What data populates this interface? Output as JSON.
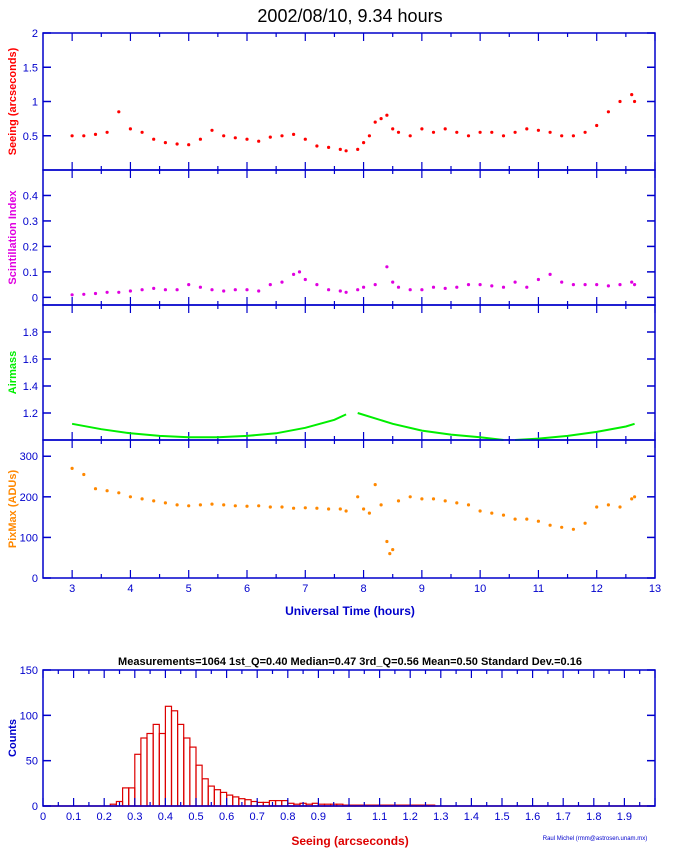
{
  "title": "2002/08/10, 9.34 hours",
  "colors": {
    "axes": "#0000cc",
    "seeing": "#ff0000",
    "scintillation": "#e000e0",
    "airmass": "#00ee00",
    "pixmax": "#ff8800",
    "histogram": "#dd0000",
    "text": "#000000"
  },
  "chart_data": [
    {
      "type": "scatter",
      "name": "seeing-panel",
      "ylabel": "Seeing (arcseconds)",
      "xlim": [
        2.5,
        13
      ],
      "ylim": [
        0,
        2
      ],
      "yticks": [
        "0.5",
        "1",
        "1.5",
        "2"
      ],
      "color_key": "seeing",
      "series": [
        {
          "x": [
            3.0,
            3.2,
            3.4,
            3.6,
            3.8,
            4.0,
            4.2,
            4.4,
            4.6,
            4.8,
            5.0,
            5.2,
            5.4,
            5.6,
            5.8,
            6.0,
            6.2,
            6.4,
            6.6,
            6.8,
            7.0,
            7.2,
            7.4,
            7.6,
            7.7,
            7.9,
            8.0,
            8.1,
            8.2,
            8.3,
            8.4,
            8.5,
            8.6,
            8.8,
            9.0,
            9.2,
            9.4,
            9.6,
            9.8,
            10.0,
            10.2,
            10.4,
            10.6,
            10.8,
            11.0,
            11.2,
            11.4,
            11.6,
            11.8,
            12.0,
            12.2,
            12.4,
            12.6,
            12.65
          ],
          "y": [
            0.5,
            0.5,
            0.52,
            0.55,
            0.85,
            0.6,
            0.55,
            0.45,
            0.4,
            0.38,
            0.37,
            0.45,
            0.58,
            0.5,
            0.47,
            0.45,
            0.42,
            0.48,
            0.5,
            0.52,
            0.45,
            0.35,
            0.33,
            0.3,
            0.28,
            0.3,
            0.4,
            0.5,
            0.7,
            0.75,
            0.8,
            0.6,
            0.55,
            0.5,
            0.6,
            0.55,
            0.6,
            0.55,
            0.5,
            0.55,
            0.55,
            0.5,
            0.55,
            0.6,
            0.58,
            0.55,
            0.5,
            0.5,
            0.55,
            0.65,
            0.85,
            1.0,
            1.1,
            1.0
          ]
        }
      ]
    },
    {
      "type": "scatter",
      "name": "scintillation-panel",
      "ylabel": "Scintillation Index",
      "xlim": [
        2.5,
        13
      ],
      "ylim": [
        -0.03,
        0.5
      ],
      "yticks": [
        "0",
        "0.1",
        "0.2",
        "0.3",
        "0.4"
      ],
      "color_key": "scintillation",
      "series": [
        {
          "x": [
            3.0,
            3.2,
            3.4,
            3.6,
            3.8,
            4.0,
            4.2,
            4.4,
            4.6,
            4.8,
            5.0,
            5.2,
            5.4,
            5.6,
            5.8,
            6.0,
            6.2,
            6.4,
            6.6,
            6.8,
            6.9,
            7.0,
            7.2,
            7.4,
            7.6,
            7.7,
            7.9,
            8.0,
            8.2,
            8.4,
            8.5,
            8.6,
            8.8,
            9.0,
            9.2,
            9.4,
            9.6,
            9.8,
            10.0,
            10.2,
            10.4,
            10.6,
            10.8,
            11.0,
            11.2,
            11.4,
            11.6,
            11.8,
            12.0,
            12.2,
            12.4,
            12.6,
            12.65
          ],
          "y": [
            0.01,
            0.012,
            0.015,
            0.02,
            0.02,
            0.025,
            0.03,
            0.035,
            0.03,
            0.03,
            0.05,
            0.04,
            0.03,
            0.025,
            0.03,
            0.03,
            0.025,
            0.05,
            0.06,
            0.09,
            0.1,
            0.07,
            0.05,
            0.03,
            0.025,
            0.02,
            0.03,
            0.04,
            0.05,
            0.12,
            0.06,
            0.04,
            0.03,
            0.03,
            0.04,
            0.035,
            0.04,
            0.05,
            0.05,
            0.045,
            0.04,
            0.06,
            0.04,
            0.07,
            0.09,
            0.06,
            0.05,
            0.05,
            0.05,
            0.045,
            0.05,
            0.06,
            0.05
          ]
        }
      ]
    },
    {
      "type": "line",
      "name": "airmass-panel",
      "ylabel": "Airmass",
      "xlim": [
        2.5,
        13
      ],
      "ylim": [
        1.0,
        2.0
      ],
      "yticks": [
        "1.2",
        "1.4",
        "1.6",
        "1.8"
      ],
      "color_key": "airmass",
      "series": [
        {
          "x": [
            3.0,
            3.5,
            4.0,
            4.5,
            5.0,
            5.5,
            6.0,
            6.5,
            7.0,
            7.5,
            7.7
          ],
          "y": [
            1.12,
            1.08,
            1.05,
            1.03,
            1.02,
            1.02,
            1.03,
            1.05,
            1.09,
            1.15,
            1.19
          ]
        },
        {
          "x": [
            7.9,
            8.5,
            9.0,
            9.5,
            10.0,
            10.4
          ],
          "y": [
            1.2,
            1.12,
            1.07,
            1.04,
            1.02,
            1.0
          ]
        },
        {
          "x": [
            10.6,
            11.0,
            11.5,
            12.0,
            12.5,
            12.65
          ],
          "y": [
            1.0,
            1.01,
            1.03,
            1.06,
            1.1,
            1.12
          ]
        }
      ]
    },
    {
      "type": "scatter",
      "name": "pixmax-panel",
      "ylabel": "PixMax (ADUs)",
      "xlim": [
        2.5,
        13
      ],
      "ylim": [
        0,
        340
      ],
      "yticks": [
        "0",
        "100",
        "200",
        "300"
      ],
      "color_key": "pixmax",
      "series": [
        {
          "x": [
            3.0,
            3.2,
            3.4,
            3.6,
            3.8,
            4.0,
            4.2,
            4.4,
            4.6,
            4.8,
            5.0,
            5.2,
            5.4,
            5.6,
            5.8,
            6.0,
            6.2,
            6.4,
            6.6,
            6.8,
            7.0,
            7.2,
            7.4,
            7.6,
            7.7,
            7.9,
            8.0,
            8.1,
            8.2,
            8.3,
            8.4,
            8.45,
            8.5,
            8.6,
            8.8,
            9.0,
            9.2,
            9.4,
            9.6,
            9.8,
            10.0,
            10.2,
            10.4,
            10.6,
            10.8,
            11.0,
            11.2,
            11.4,
            11.6,
            11.8,
            12.0,
            12.2,
            12.4,
            12.6,
            12.65
          ],
          "y": [
            270,
            255,
            220,
            215,
            210,
            200,
            195,
            190,
            185,
            180,
            178,
            180,
            182,
            180,
            178,
            177,
            178,
            175,
            175,
            172,
            173,
            172,
            170,
            170,
            165,
            200,
            170,
            160,
            230,
            180,
            90,
            60,
            70,
            190,
            200,
            195,
            195,
            190,
            185,
            180,
            165,
            160,
            155,
            145,
            145,
            140,
            130,
            125,
            120,
            135,
            175,
            180,
            175,
            195,
            200
          ]
        }
      ]
    },
    {
      "type": "bar",
      "name": "seeing-histogram",
      "stats": "Measurements=1064   1st_Q=0.40   Median=0.47   3rd_Q=0.56   Mean=0.50   Standard Dev.=0.16",
      "xlabel": "Seeing (arcseconds)",
      "ylabel": "Counts",
      "xlim": [
        0,
        2.0
      ],
      "ylim": [
        0,
        150
      ],
      "yticks": [
        "0",
        "50",
        "100",
        "150"
      ],
      "xticks": [
        "0",
        "0.1",
        "0.2",
        "0.3",
        "0.4",
        "0.5",
        "0.6",
        "0.7",
        "0.8",
        "0.9",
        "1",
        "1.1",
        "1.2",
        "1.3",
        "1.4",
        "1.5",
        "1.6",
        "1.7",
        "1.8",
        "1.9"
      ],
      "bin_start": 0.22,
      "bin_width": 0.02,
      "values": [
        2,
        5,
        20,
        20,
        57,
        75,
        80,
        90,
        80,
        110,
        105,
        90,
        75,
        65,
        45,
        30,
        22,
        18,
        15,
        12,
        10,
        8,
        7,
        5,
        4,
        4,
        6,
        6,
        6,
        3,
        2,
        3,
        2,
        3,
        2,
        2,
        2,
        2,
        1,
        1,
        1,
        1,
        1,
        1,
        1,
        1,
        1,
        1,
        1,
        1,
        1,
        1,
        1
      ],
      "color_key": "histogram"
    }
  ],
  "main_xlabel": "Universal Time (hours)",
  "main_xticks": [
    "3",
    "4",
    "5",
    "6",
    "7",
    "8",
    "9",
    "10",
    "11",
    "12",
    "13"
  ],
  "credit": "Raul Michel (rmm@astrosen.unam.mx)"
}
